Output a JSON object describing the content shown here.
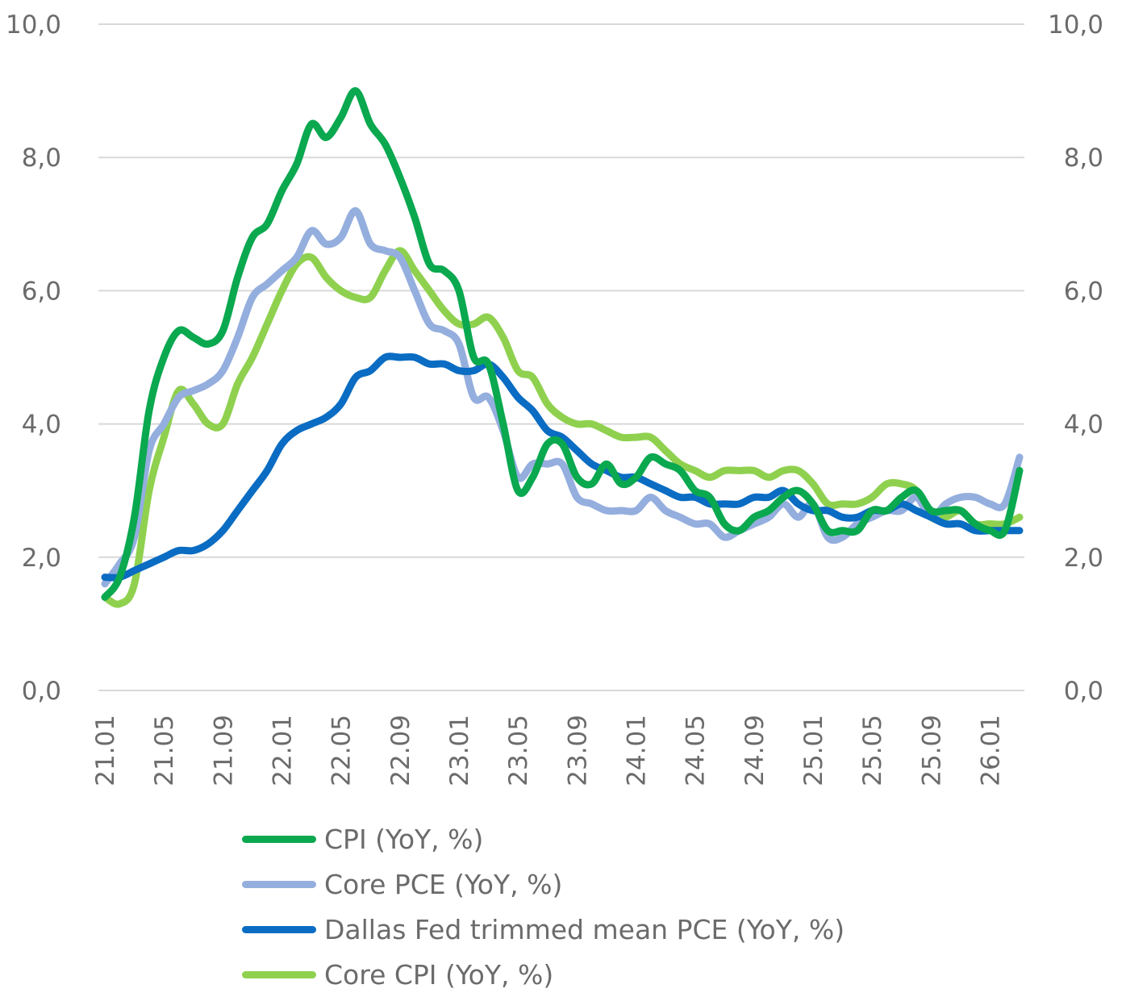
{
  "chart_data": {
    "type": "line",
    "title": "",
    "xlabel": "",
    "ylabel": "",
    "ylim": [
      0,
      10
    ],
    "y_ticks": [
      "0,0",
      "2,0",
      "4,0",
      "6,0",
      "8,0",
      "10,0"
    ],
    "y2_ticks": [
      "0,0",
      "2,0",
      "4,0",
      "6,0",
      "8,0",
      "10,0"
    ],
    "x_tick_labels": [
      "21.01",
      "21.05",
      "21.09",
      "22.01",
      "22.05",
      "22.09",
      "23.01",
      "23.05",
      "23.09",
      "24.01",
      "24.05",
      "24.09",
      "25.01",
      "25.05",
      "25.09",
      "26.01"
    ],
    "grid": "horizontal",
    "legend_position": "bottom",
    "months": 63,
    "series": [
      {
        "name": "CPI (YoY, %)",
        "color": "#0aa84f",
        "values": [
          1.4,
          1.7,
          2.6,
          4.2,
          5.0,
          5.4,
          5.3,
          5.2,
          5.4,
          6.2,
          6.8,
          7.0,
          7.5,
          7.9,
          8.5,
          8.3,
          8.6,
          9.0,
          8.5,
          8.2,
          7.7,
          7.1,
          6.4,
          6.3,
          6.0,
          5.0,
          4.9,
          4.0,
          3.0,
          3.2,
          3.7,
          3.7,
          3.2,
          3.1,
          3.4,
          3.1,
          3.2,
          3.5,
          3.4,
          3.3,
          3.0,
          2.9,
          2.5,
          2.4,
          2.6,
          2.7,
          2.9,
          3.0,
          2.8,
          2.4,
          2.4,
          2.4,
          2.7,
          2.7,
          2.9,
          3.0,
          2.7,
          2.7,
          2.7,
          2.5,
          2.4,
          2.4,
          3.3
        ]
      },
      {
        "name": "Core PCE (YoY, %)",
        "color": "#94aede",
        "values": [
          1.6,
          1.9,
          2.3,
          3.6,
          4.0,
          4.4,
          4.5,
          4.6,
          4.8,
          5.3,
          5.9,
          6.1,
          6.3,
          6.5,
          6.9,
          6.7,
          6.8,
          7.2,
          6.7,
          6.6,
          6.5,
          6.0,
          5.5,
          5.4,
          5.2,
          4.4,
          4.4,
          3.9,
          3.2,
          3.4,
          3.4,
          3.4,
          2.9,
          2.8,
          2.7,
          2.7,
          2.7,
          2.9,
          2.7,
          2.6,
          2.5,
          2.5,
          2.3,
          2.4,
          2.5,
          2.6,
          2.8,
          2.6,
          2.8,
          2.3,
          2.3,
          2.5,
          2.6,
          2.7,
          2.7,
          2.9,
          2.6,
          2.8,
          2.9,
          2.9,
          2.8,
          2.8,
          3.5
        ]
      },
      {
        "name": "Dallas Fed trimmed mean PCE (YoY, %)",
        "color": "#0a6cc2",
        "values": [
          1.7,
          1.7,
          1.8,
          1.9,
          2.0,
          2.1,
          2.1,
          2.2,
          2.4,
          2.7,
          3.0,
          3.3,
          3.7,
          3.9,
          4.0,
          4.1,
          4.3,
          4.7,
          4.8,
          5.0,
          5.0,
          5.0,
          4.9,
          4.9,
          4.8,
          4.8,
          4.9,
          4.7,
          4.4,
          4.2,
          3.9,
          3.8,
          3.6,
          3.4,
          3.3,
          3.2,
          3.2,
          3.1,
          3.0,
          2.9,
          2.9,
          2.8,
          2.8,
          2.8,
          2.9,
          2.9,
          3.0,
          2.8,
          2.7,
          2.7,
          2.6,
          2.6,
          2.7,
          2.7,
          2.8,
          2.7,
          2.6,
          2.5,
          2.5,
          2.4,
          2.4,
          2.4,
          2.4
        ]
      },
      {
        "name": "Core CPI (YoY, %)",
        "color": "#8fd14f",
        "values": [
          1.4,
          1.3,
          1.6,
          3.0,
          3.8,
          4.5,
          4.3,
          4.0,
          4.0,
          4.6,
          5.0,
          5.5,
          6.0,
          6.4,
          6.5,
          6.2,
          6.0,
          5.9,
          5.9,
          6.3,
          6.6,
          6.3,
          6.0,
          5.7,
          5.5,
          5.5,
          5.6,
          5.3,
          4.8,
          4.7,
          4.3,
          4.1,
          4.0,
          4.0,
          3.9,
          3.8,
          3.8,
          3.8,
          3.6,
          3.4,
          3.3,
          3.2,
          3.3,
          3.3,
          3.3,
          3.2,
          3.3,
          3.3,
          3.1,
          2.8,
          2.8,
          2.8,
          2.9,
          3.1,
          3.1,
          3.0,
          2.6,
          2.6,
          2.7,
          2.5,
          2.5,
          2.5,
          2.6
        ]
      }
    ]
  }
}
